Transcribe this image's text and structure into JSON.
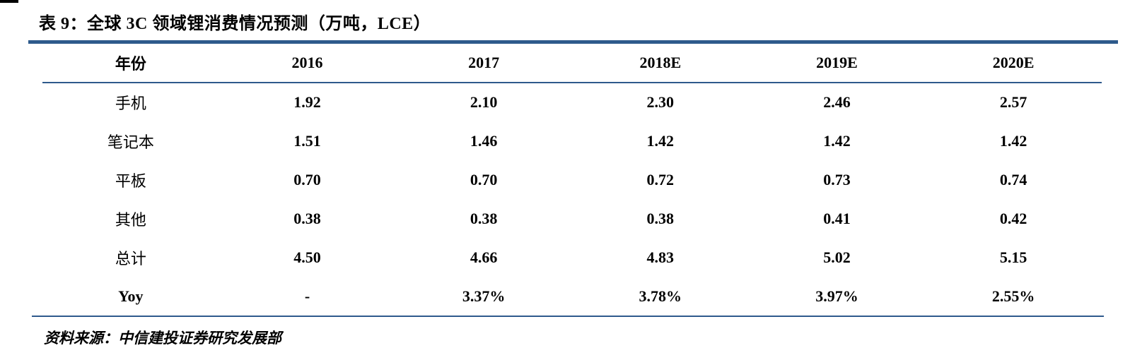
{
  "table": {
    "title": "表 9：全球 3C 领域锂消费情况预测（万吨，LCE）",
    "columns": [
      "年份",
      "2016",
      "2017",
      "2018E",
      "2019E",
      "2020E"
    ],
    "rows": [
      {
        "label": "手机",
        "values": [
          "1.92",
          "2.10",
          "2.30",
          "2.46",
          "2.57"
        ]
      },
      {
        "label": "笔记本",
        "values": [
          "1.51",
          "1.46",
          "1.42",
          "1.42",
          "1.42"
        ]
      },
      {
        "label": "平板",
        "values": [
          "0.70",
          "0.70",
          "0.72",
          "0.73",
          "0.74"
        ]
      },
      {
        "label": "其他",
        "values": [
          "0.38",
          "0.38",
          "0.38",
          "0.41",
          "0.42"
        ]
      },
      {
        "label": "总计",
        "values": [
          "4.50",
          "4.66",
          "4.83",
          "5.02",
          "5.15"
        ]
      },
      {
        "label": "Yoy",
        "values": [
          "-",
          "3.37%",
          "3.78%",
          "3.97%",
          "2.55%"
        ]
      }
    ],
    "source": "资料来源：中信建投证券研究发展部"
  },
  "colors": {
    "rule": "#2E5A8C",
    "text": "#000000"
  }
}
